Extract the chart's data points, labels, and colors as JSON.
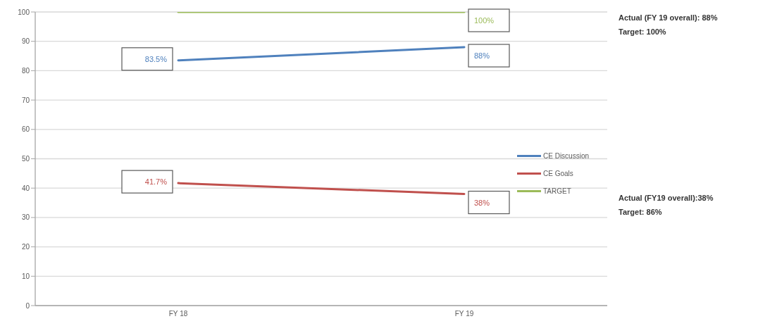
{
  "chart_data": {
    "type": "line",
    "categories": [
      "FY 18",
      "FY 19"
    ],
    "series": [
      {
        "name": "CE Discussion",
        "color": "#4f81bd",
        "values": [
          83.5,
          88
        ],
        "value_labels": [
          "83.5%",
          "88%"
        ]
      },
      {
        "name": "CE Goals",
        "color": "#c0504d",
        "values": [
          41.7,
          38
        ],
        "value_labels": [
          "41.7%",
          "38%"
        ]
      },
      {
        "name": "TARGET",
        "color": "#9bbb59",
        "values": [
          100,
          100
        ],
        "value_labels": [
          null,
          "100%"
        ]
      }
    ],
    "ylim": [
      0,
      100
    ],
    "yticks": [
      0,
      10,
      20,
      30,
      40,
      50,
      60,
      70,
      80,
      90,
      100
    ],
    "grid": "y",
    "legend": "right",
    "marker": "none",
    "line_style": "solid",
    "annotations": [
      "Actual (FY 19 overall): 88%",
      "Target: 100%",
      "Actual (FY19 overall):38%",
      "Target: 86%"
    ]
  }
}
